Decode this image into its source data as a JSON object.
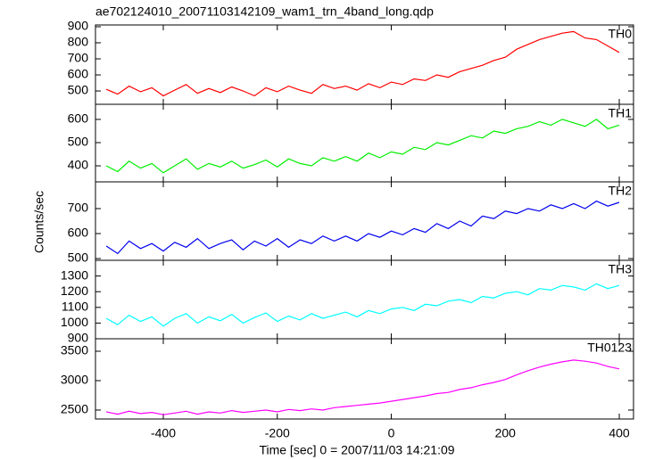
{
  "chart_data": [
    {
      "type": "line",
      "title": "ae702124010_20071103142109_wam1_trn_4band_long.qdp",
      "label": "TH0",
      "color": "#ff0000",
      "x": [
        -500,
        -480,
        -460,
        -440,
        -420,
        -400,
        -380,
        -360,
        -340,
        -320,
        -300,
        -280,
        -260,
        -240,
        -220,
        -200,
        -180,
        -160,
        -140,
        -120,
        -100,
        -80,
        -60,
        -40,
        -20,
        0,
        20,
        40,
        60,
        80,
        100,
        120,
        140,
        160,
        180,
        200,
        220,
        240,
        260,
        280,
        300,
        320,
        340,
        360,
        380,
        400
      ],
      "values": [
        510,
        480,
        530,
        495,
        520,
        470,
        505,
        540,
        485,
        515,
        490,
        525,
        500,
        470,
        520,
        495,
        530,
        505,
        485,
        540,
        515,
        530,
        505,
        545,
        520,
        555,
        540,
        575,
        565,
        600,
        585,
        620,
        640,
        660,
        690,
        710,
        760,
        790,
        820,
        840,
        860,
        870,
        830,
        820,
        780,
        740
      ],
      "xlim": [
        -519,
        425
      ],
      "ylim": [
        417,
        911
      ],
      "yticks": [
        500,
        600,
        700,
        800,
        900
      ]
    },
    {
      "type": "line",
      "label": "TH1",
      "color": "#00ee00",
      "x": [
        -500,
        -480,
        -460,
        -440,
        -420,
        -400,
        -380,
        -360,
        -340,
        -320,
        -300,
        -280,
        -260,
        -240,
        -220,
        -200,
        -180,
        -160,
        -140,
        -120,
        -100,
        -80,
        -60,
        -40,
        -20,
        0,
        20,
        40,
        60,
        80,
        100,
        120,
        140,
        160,
        180,
        200,
        220,
        240,
        260,
        280,
        300,
        320,
        340,
        360,
        380,
        400
      ],
      "values": [
        400,
        375,
        420,
        390,
        410,
        370,
        400,
        430,
        385,
        410,
        395,
        420,
        390,
        405,
        425,
        395,
        430,
        410,
        400,
        435,
        420,
        440,
        420,
        455,
        435,
        460,
        450,
        480,
        470,
        500,
        490,
        510,
        530,
        520,
        550,
        540,
        560,
        570,
        590,
        575,
        600,
        585,
        570,
        600,
        560,
        575
      ],
      "xlim": [
        -519,
        425
      ],
      "ylim": [
        331,
        665
      ],
      "yticks": [
        400,
        500,
        600
      ]
    },
    {
      "type": "line",
      "label": "TH2",
      "ylabel": "Counts/sec",
      "color": "#0000ee",
      "x": [
        -500,
        -480,
        -460,
        -440,
        -420,
        -400,
        -380,
        -360,
        -340,
        -320,
        -300,
        -280,
        -260,
        -240,
        -220,
        -200,
        -180,
        -160,
        -140,
        -120,
        -100,
        -80,
        -60,
        -40,
        -20,
        0,
        20,
        40,
        60,
        80,
        100,
        120,
        140,
        160,
        180,
        200,
        220,
        240,
        260,
        280,
        300,
        320,
        340,
        360,
        380,
        400
      ],
      "values": [
        550,
        520,
        570,
        540,
        560,
        530,
        565,
        545,
        580,
        540,
        560,
        575,
        535,
        570,
        550,
        580,
        545,
        575,
        560,
        590,
        570,
        590,
        570,
        600,
        585,
        610,
        595,
        620,
        605,
        640,
        620,
        650,
        630,
        670,
        660,
        690,
        680,
        700,
        690,
        715,
        700,
        720,
        700,
        730,
        710,
        725
      ],
      "xlim": [
        -519,
        425
      ],
      "ylim": [
        493,
        807
      ],
      "yticks": [
        500,
        600,
        700
      ]
    },
    {
      "type": "line",
      "label": "TH3",
      "color": "#00ffff",
      "x": [
        -500,
        -480,
        -460,
        -440,
        -420,
        -400,
        -380,
        -360,
        -340,
        -320,
        -300,
        -280,
        -260,
        -240,
        -220,
        -200,
        -180,
        -160,
        -140,
        -120,
        -100,
        -80,
        -60,
        -40,
        -20,
        0,
        20,
        40,
        60,
        80,
        100,
        120,
        140,
        160,
        180,
        200,
        220,
        240,
        260,
        280,
        300,
        320,
        340,
        360,
        380,
        400
      ],
      "values": [
        1030,
        990,
        1050,
        1010,
        1040,
        980,
        1030,
        1060,
        1000,
        1040,
        1015,
        1055,
        1000,
        1035,
        1065,
        1010,
        1045,
        1020,
        1060,
        1030,
        1050,
        1070,
        1040,
        1080,
        1060,
        1090,
        1100,
        1080,
        1120,
        1110,
        1140,
        1150,
        1130,
        1170,
        1160,
        1190,
        1200,
        1180,
        1220,
        1210,
        1240,
        1230,
        1210,
        1250,
        1220,
        1240
      ],
      "xlim": [
        -519,
        425
      ],
      "ylim": [
        900,
        1400
      ],
      "yticks": [
        900,
        1000,
        1100,
        1200,
        1300
      ]
    },
    {
      "type": "line",
      "label": "TH0123",
      "xlabel": "Time [sec] 0 = 2007/11/03 14:21:09",
      "color": "#ff00ff",
      "x": [
        -500,
        -480,
        -460,
        -440,
        -420,
        -400,
        -380,
        -360,
        -340,
        -320,
        -300,
        -280,
        -260,
        -240,
        -220,
        -200,
        -180,
        -160,
        -140,
        -120,
        -100,
        -80,
        -60,
        -40,
        -20,
        0,
        20,
        40,
        60,
        80,
        100,
        120,
        140,
        160,
        180,
        200,
        220,
        240,
        260,
        280,
        300,
        320,
        340,
        360,
        380,
        400
      ],
      "values": [
        2470,
        2430,
        2480,
        2440,
        2460,
        2420,
        2450,
        2480,
        2430,
        2470,
        2450,
        2490,
        2460,
        2480,
        2500,
        2470,
        2510,
        2490,
        2520,
        2500,
        2540,
        2560,
        2580,
        2600,
        2620,
        2650,
        2680,
        2710,
        2740,
        2780,
        2800,
        2850,
        2880,
        2930,
        2970,
        3020,
        3100,
        3170,
        3230,
        3280,
        3320,
        3350,
        3330,
        3300,
        3240,
        3200
      ],
      "xlim": [
        -519,
        425
      ],
      "ylim": [
        2348,
        3712
      ],
      "yticks": [
        2500,
        3000,
        3500
      ],
      "xticks": [
        -400,
        -200,
        0,
        200,
        400
      ]
    }
  ]
}
